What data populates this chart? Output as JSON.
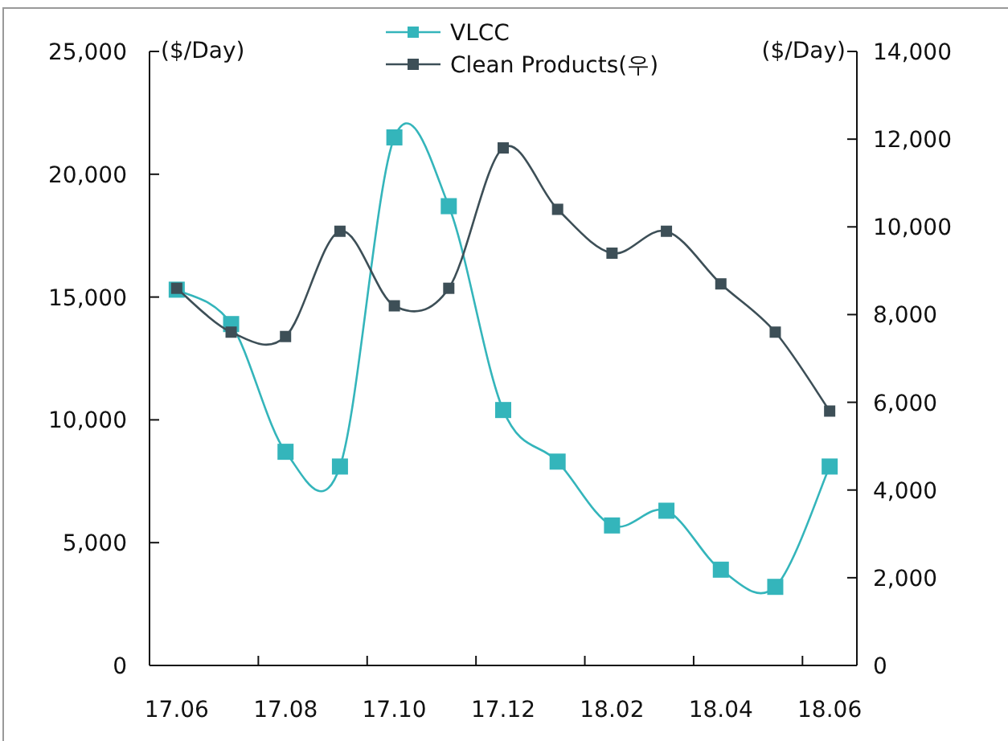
{
  "chart_data": {
    "type": "line",
    "ylabel": "($/Day)",
    "y2label": "($/Day)",
    "categories": [
      "17.06",
      null,
      "17.08",
      null,
      "17.10",
      null,
      "17.12",
      null,
      "18.02",
      null,
      "18.04",
      null,
      "18.06"
    ],
    "series": [
      {
        "name": "VLCC",
        "color": "#34b5bb",
        "values": [
          15300,
          13900,
          8700,
          8100,
          21500,
          18700,
          10400,
          8300,
          5700,
          6300,
          3900,
          3200,
          8100
        ]
      },
      {
        "name": "Clean Products(우)",
        "color": "#3d4f57",
        "axis": "y2",
        "values": [
          8600,
          7600,
          7500,
          9900,
          8200,
          8600,
          11800,
          10400,
          9400,
          9900,
          8700,
          7600,
          5800
        ]
      }
    ],
    "ylim": [
      0,
      25000
    ],
    "yticks": [
      0,
      {
        "value": 5000,
        "label": "5,000"
      },
      {
        "value": 10000,
        "label": "10,000"
      },
      {
        "value": 15000,
        "label": "15,000"
      },
      {
        "value": 20000,
        "label": "20,000"
      },
      {
        "value": 25000,
        "label": "25,000"
      }
    ],
    "y2lim": [
      0,
      14000
    ],
    "y2ticks": [
      0,
      {
        "value": 2000,
        "label": "2,000"
      },
      {
        "value": 4000,
        "label": "4,000"
      },
      {
        "value": 6000,
        "label": "6,000"
      },
      {
        "value": 8000,
        "label": "8,000"
      },
      {
        "value": 10000,
        "label": "10,000"
      },
      {
        "value": 12000,
        "label": "12,000"
      },
      {
        "value": 14000,
        "label": "14,000"
      }
    ],
    "legend": "top",
    "marker": "square",
    "grid": false
  }
}
